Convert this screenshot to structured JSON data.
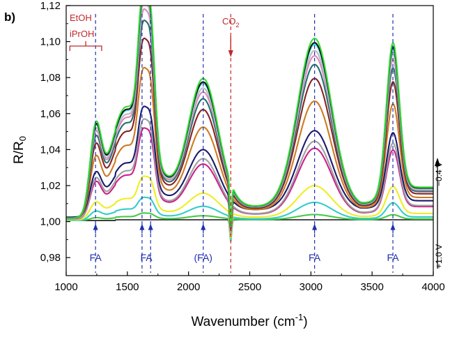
{
  "chart_data": {
    "type": "line",
    "panel_label": "b)",
    "xlabel": "Wavenumber (cm",
    "xlabel_sup": "-1",
    "xlabel_end": ")",
    "ylabel": "R/R",
    "ylabel_sub": "0",
    "xlim": [
      1000,
      4000
    ],
    "ylim": [
      0.97,
      1.12
    ],
    "x_ticks": [
      1000,
      1500,
      2000,
      2500,
      3000,
      3500,
      4000
    ],
    "x_tick_labels": [
      "1000",
      "1500",
      "2000",
      "2500",
      "3000",
      "3500",
      "4000"
    ],
    "y_ticks": [
      0.98,
      1.0,
      1.02,
      1.04,
      1.06,
      1.08,
      1.1,
      1.12
    ],
    "y_tick_labels": [
      "0,98",
      "1,00",
      "1,02",
      "1,04",
      "1,06",
      "1,08",
      "1,10",
      "1,12"
    ],
    "grid": false,
    "baseline": 1.0,
    "colors": {
      "axis": "#000000",
      "reference_line_blue": "#2030b0",
      "reference_line_red": "#d02020",
      "ann_blue": "#2030b0",
      "ann_red": "#c0282a"
    },
    "reference_lines": [
      {
        "x": 1240,
        "color": "#2030b0",
        "style": "dashed"
      },
      {
        "x": 1620,
        "color": "#2030b0",
        "style": "dashed"
      },
      {
        "x": 1690,
        "color": "#2030b0",
        "style": "dashed"
      },
      {
        "x": 2120,
        "color": "#2030b0",
        "style": "dashed"
      },
      {
        "x": 2345,
        "color": "#d02020",
        "style": "dashed"
      },
      {
        "x": 3030,
        "color": "#2030b0",
        "style": "dashed"
      },
      {
        "x": 3670,
        "color": "#2030b0",
        "style": "dashed"
      }
    ],
    "annotations": {
      "fa_markers": [
        {
          "x": 1240,
          "label": "FA"
        },
        {
          "x": 1620,
          "label": "FA"
        },
        {
          "x": 1690,
          "label": ""
        },
        {
          "x": 2120,
          "label": "(FA)"
        },
        {
          "x": 3030,
          "label": "FA"
        },
        {
          "x": 3670,
          "label": "FA"
        }
      ],
      "co2": {
        "x": 2345,
        "label": "CO",
        "sub": "2"
      },
      "etoh_label": "EtOH",
      "iproh_label": "iPrOH",
      "bracket_x": [
        1030,
        1290
      ]
    },
    "potential_axis": {
      "top_label": "−0.4 V",
      "bottom_label": "+1.0 V"
    },
    "spectrum_peaks": [
      {
        "x": 1240,
        "w": 65,
        "r": 0.4
      },
      {
        "x": 1450,
        "w": 150,
        "r": 0.28
      },
      {
        "x": 1620,
        "w": 50,
        "r": 0.62
      },
      {
        "x": 1690,
        "w": 50,
        "r": 0.66
      },
      {
        "x": 1600,
        "w": 230,
        "r": 0.32
      },
      {
        "x": 2120,
        "w": 175,
        "r": 0.66
      },
      {
        "x": 3030,
        "w": 195,
        "r": 0.87
      },
      {
        "x": 3670,
        "w": 75,
        "r": 0.78
      }
    ],
    "spectrum_background": [
      {
        "x0": 1150,
        "x1": 1300
      },
      {
        "x0": 3400,
        "x1": 3800
      }
    ],
    "co2_dip": {
      "x": 2345,
      "w": 11,
      "depth": 0.012
    },
    "series": [
      {
        "name": "",
        "color": "#111111",
        "scale": 0.0,
        "offset": 0.001
      },
      {
        "name": "",
        "color": "#44cc44",
        "scale": 0.03,
        "offset": 0.001
      },
      {
        "name": "",
        "color": "#33cccc",
        "scale": 0.1,
        "offset": 0.001
      },
      {
        "name": "",
        "color": "#eeee22",
        "scale": 0.19,
        "offset": 0.0015
      },
      {
        "name": "",
        "color": "#cc2288",
        "scale": 0.4,
        "offset": 0.002
      },
      {
        "name": "",
        "color": "#a0a0a0",
        "scale": 0.44,
        "offset": 0.002
      },
      {
        "name": "",
        "color": "#1a1a6e",
        "scale": 0.48,
        "offset": 0.004
      },
      {
        "name": "",
        "color": "#cc7a22",
        "scale": 0.66,
        "offset": 0.003
      },
      {
        "name": "",
        "color": "#882222",
        "scale": 0.79,
        "offset": 0.003
      },
      {
        "name": "",
        "color": "#227070",
        "scale": 0.87,
        "offset": 0.003
      },
      {
        "name": "",
        "color": "#dd88bb",
        "scale": 0.92,
        "offset": 0.003
      },
      {
        "name": "",
        "color": "#bbbbbb",
        "scale": 0.95,
        "offset": 0.003
      },
      {
        "name": "",
        "color": "#44ddee",
        "scale": 0.985,
        "offset": 0.003
      },
      {
        "name": "",
        "color": "#111111",
        "scale": 0.995,
        "offset": 0.003
      },
      {
        "name": "",
        "color": "#33dd33",
        "scale": 1.02,
        "offset": 0.003
      }
    ]
  }
}
